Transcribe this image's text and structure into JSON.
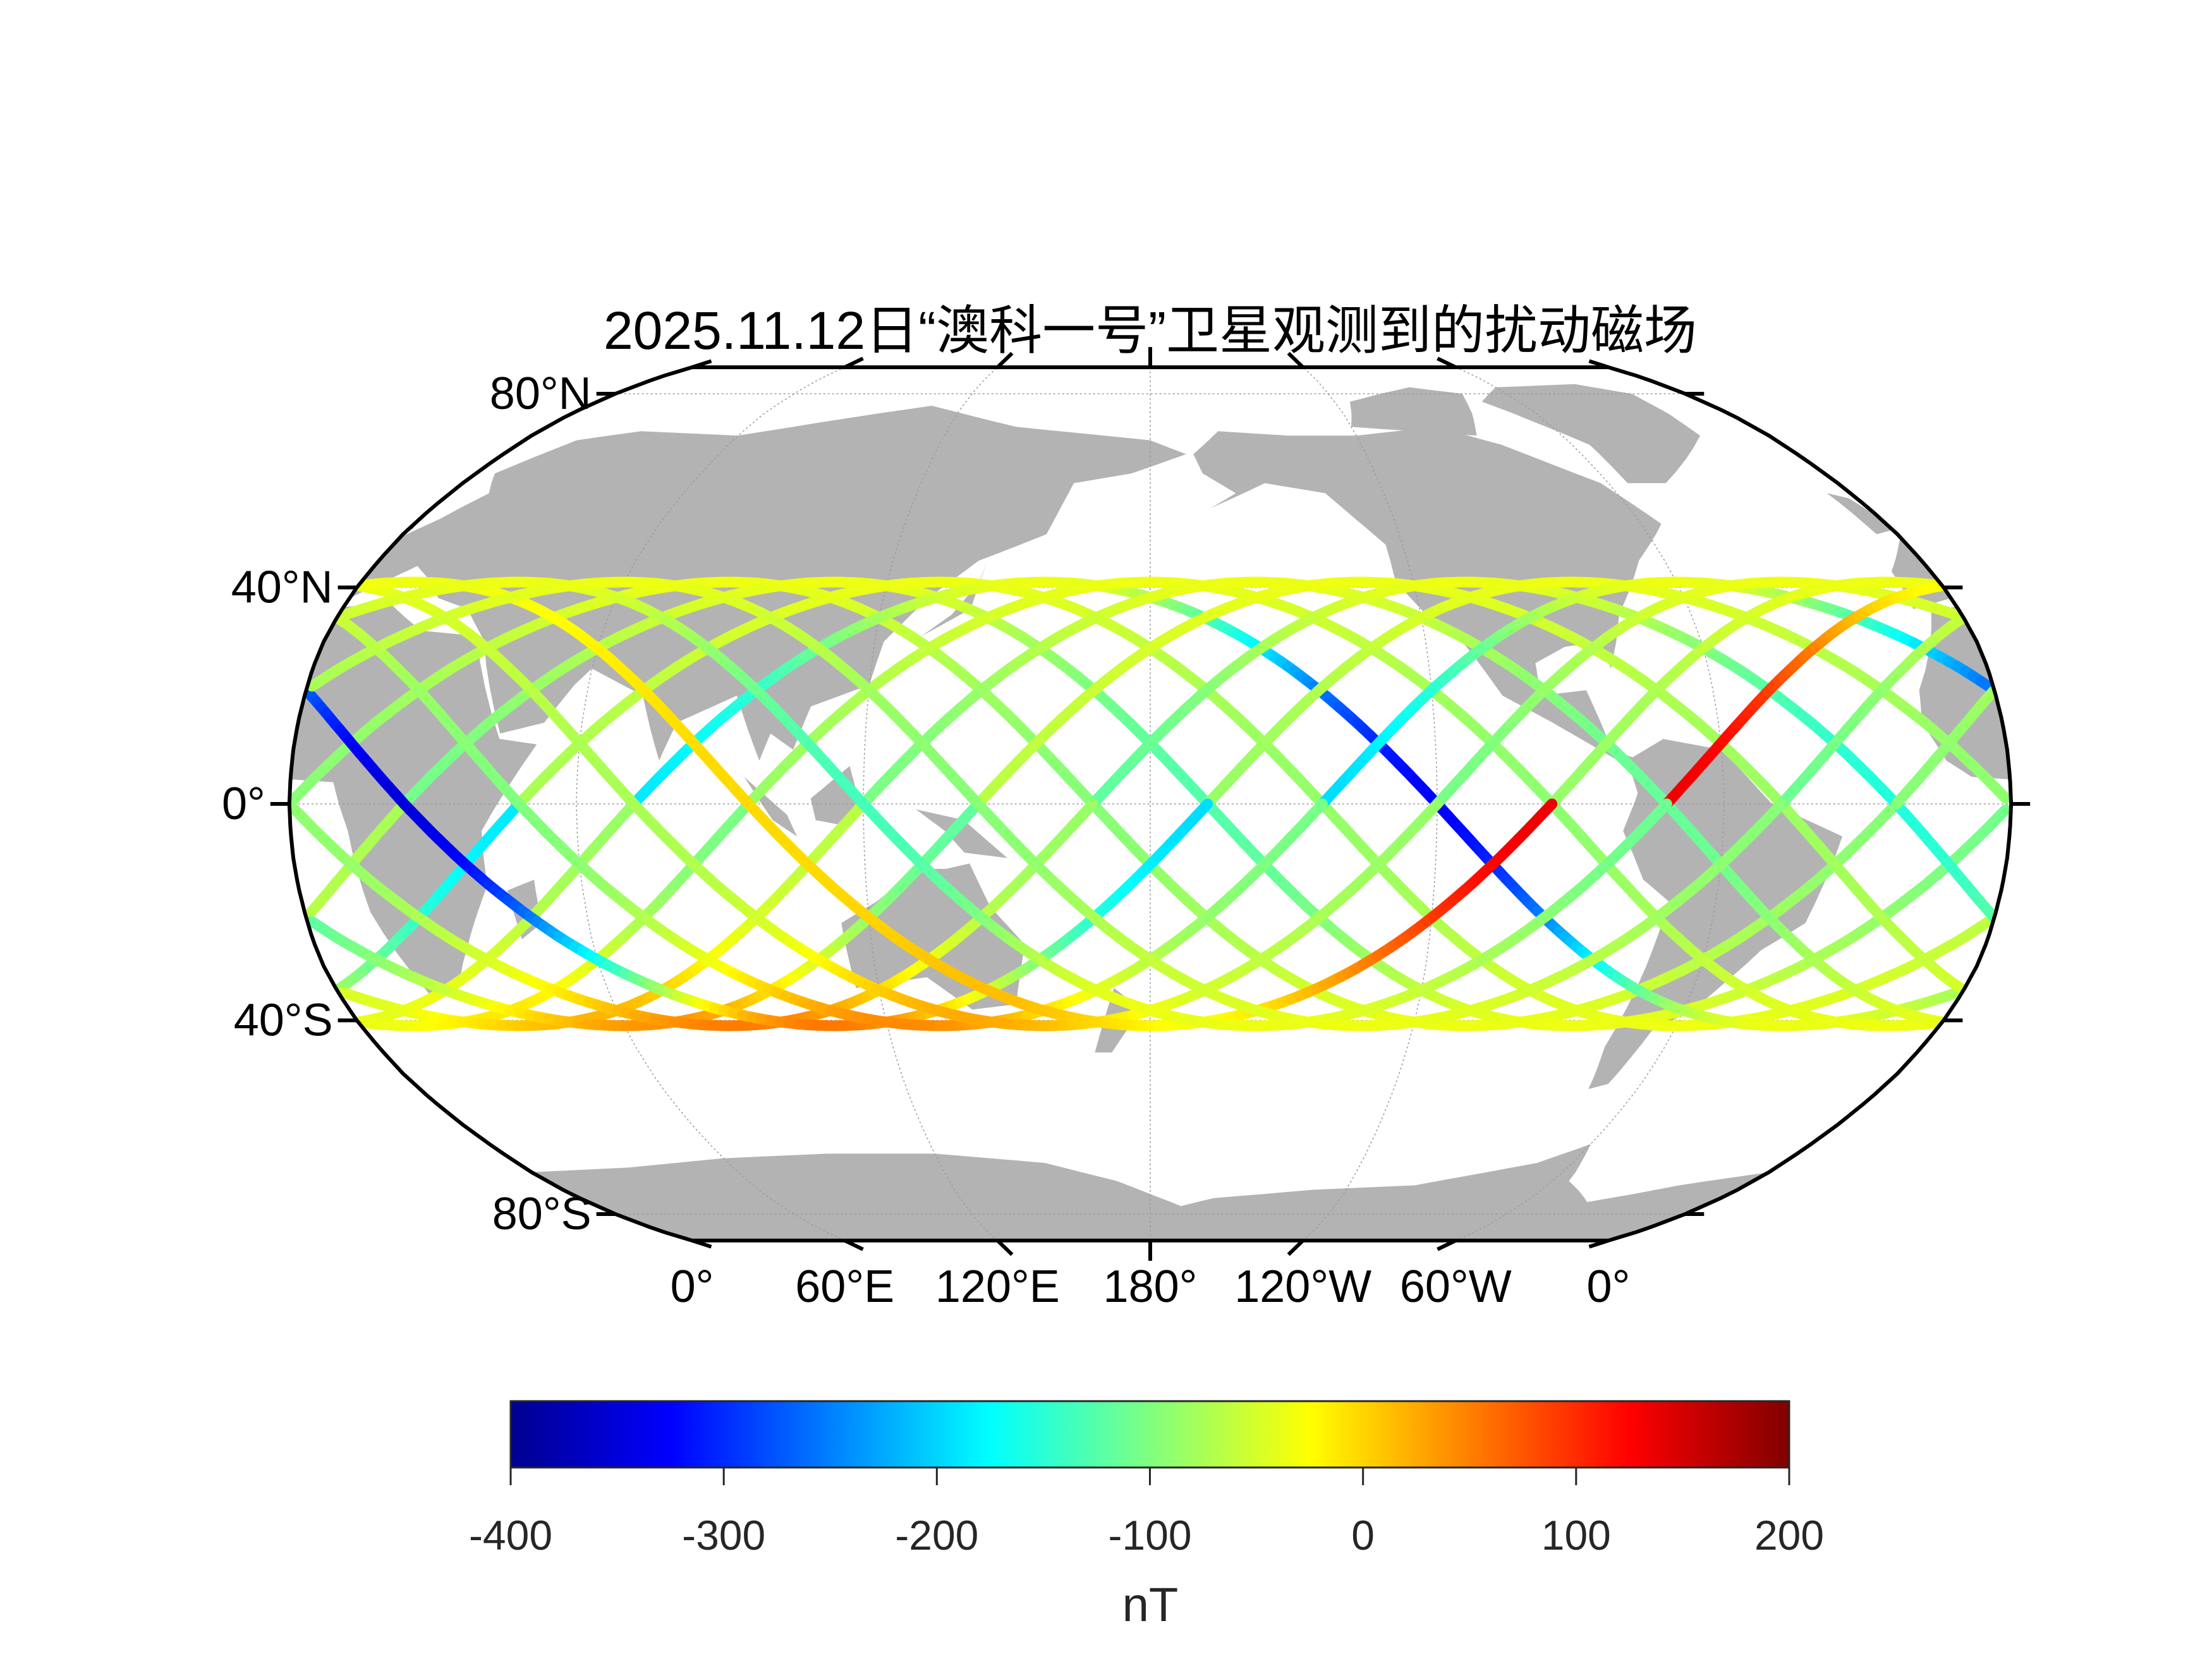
{
  "chart_data": {
    "type": "scatter",
    "subtype": "map-ground-track",
    "title": "2025.11.12日“澳科一号”卫星观测到的扰动磁场",
    "projection": "robinson",
    "central_longitude": 180,
    "lat_ticks": [
      {
        "lat": 80,
        "label": "80°N"
      },
      {
        "lat": 40,
        "label": "40°N"
      },
      {
        "lat": 0,
        "label": "0°"
      },
      {
        "lat": -40,
        "label": "40°S"
      },
      {
        "lat": -80,
        "label": "80°S"
      }
    ],
    "lon_ticks": [
      {
        "lon": 0,
        "label": "0°"
      },
      {
        "lon": 60,
        "label": "60°E"
      },
      {
        "lon": 120,
        "label": "120°E"
      },
      {
        "lon": 180,
        "label": "180°"
      },
      {
        "lon": 240,
        "label": "120°W"
      },
      {
        "lon": 300,
        "label": "60°W"
      },
      {
        "lon": 360,
        "label": "0°"
      }
    ],
    "tracks": {
      "inclination_deg": 41,
      "orbits": 15,
      "lon_step_deg": 24,
      "value_offsets_nT": [
        0,
        -30,
        20,
        -230,
        10,
        -20,
        30,
        -60,
        10,
        -250,
        -10,
        20,
        230,
        -40,
        0
      ]
    },
    "colorbar": {
      "colormap": "jet",
      "range": [
        -400,
        200
      ],
      "ticks": [
        -400,
        -300,
        -200,
        -100,
        0,
        100,
        200
      ],
      "tick_labels": [
        "-400",
        "-300",
        "-200",
        "-100",
        "0",
        "100",
        "200"
      ],
      "label": "nT"
    },
    "colors": {
      "land": "#b3b3b3",
      "frame": "#000000",
      "grid": "#9a9a9a"
    }
  }
}
